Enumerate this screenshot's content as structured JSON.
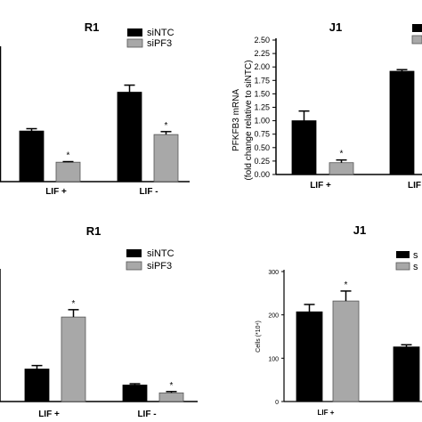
{
  "legend": {
    "ntc": "siNTC",
    "pf3": "siPF3"
  },
  "colors": {
    "ntc": "#000000",
    "pf3": "#a8a8a8",
    "axis": "#000000"
  },
  "chart_data": [
    {
      "type": "bar",
      "title": "R1",
      "categories": [
        "LIF +",
        "LIF -"
      ],
      "series": [
        {
          "name": "siNTC",
          "values": [
            0.86,
            1.52
          ],
          "errors": [
            0.04,
            0.12
          ]
        },
        {
          "name": "siPF3",
          "values": [
            0.33,
            0.8
          ],
          "errors": [
            0.01,
            0.05
          ]
        }
      ],
      "significance": [
        "*",
        "*"
      ],
      "ylim": [
        0,
        2.3
      ],
      "xlabel": "",
      "ylabel": ""
    },
    {
      "type": "bar",
      "title": "J1",
      "categories": [
        "LIF +",
        "LIF"
      ],
      "series": [
        {
          "name": "siNTC",
          "values": [
            1.0,
            1.92
          ],
          "errors": [
            0.18,
            0.03
          ]
        },
        {
          "name": "siPF3",
          "values": [
            0.22,
            null
          ],
          "errors": [
            0.05,
            null
          ]
        }
      ],
      "significance": [
        "*",
        ""
      ],
      "ylim": [
        0,
        2.5
      ],
      "yticks": [
        "0.00",
        "0.25",
        "0.50",
        "0.75",
        "1.00",
        "1.25",
        "1.50",
        "1.75",
        "2.00",
        "2.25",
        "2.50"
      ],
      "ylabel": "PFKFB3 mRNA (fold change relative to siNTC)",
      "ylabel_lines": [
        "PFKFB3 mRNA",
        "(fold change relative to siNTC)"
      ],
      "xlabel": ""
    },
    {
      "type": "bar",
      "title": "R1",
      "categories": [
        "LIF +",
        "LIF -"
      ],
      "series": [
        {
          "name": "siNTC",
          "values": [
            75,
            38
          ],
          "errors": [
            8,
            3
          ]
        },
        {
          "name": "siPF3",
          "values": [
            195,
            20
          ],
          "errors": [
            17,
            3
          ]
        }
      ],
      "significance": [
        "*",
        "*"
      ],
      "ylim": [
        0,
        300
      ],
      "xlabel": "",
      "ylabel": ""
    },
    {
      "type": "bar",
      "title": "J1",
      "categories": [
        "LIF +",
        ""
      ],
      "series": [
        {
          "name": "",
          "values": [
            207,
            126
          ],
          "errors": [
            17,
            5
          ]
        },
        {
          "name": "",
          "values": [
            232,
            null
          ],
          "errors": [
            23,
            null
          ]
        }
      ],
      "significance": [
        "*",
        ""
      ],
      "ylim": [
        0,
        300
      ],
      "yticks": [
        "0",
        "100",
        "200",
        "300"
      ],
      "ylabel": "Cells (*10⁴)",
      "xlabel": ""
    }
  ]
}
